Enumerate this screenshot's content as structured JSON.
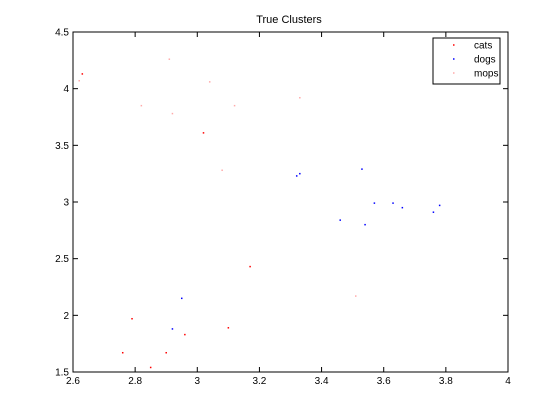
{
  "chart_data": {
    "type": "scatter",
    "title": "True Clusters",
    "xlabel": "",
    "ylabel": "",
    "xlim": [
      2.6,
      4.0
    ],
    "ylim": [
      1.5,
      4.5
    ],
    "xticks": [
      "2.6",
      "2.8",
      "3",
      "3.2",
      "3.4",
      "3.6",
      "3.8",
      "4"
    ],
    "yticks": [
      "1.5",
      "2",
      "2.5",
      "3",
      "3.5",
      "4",
      "4.5"
    ],
    "grid": false,
    "legend_position": "top-right",
    "series": [
      {
        "name": "cats",
        "color": "#ff0000",
        "points": [
          [
            2.63,
            4.13
          ],
          [
            2.76,
            1.67
          ],
          [
            2.79,
            1.97
          ],
          [
            2.85,
            1.54
          ],
          [
            2.9,
            1.67
          ],
          [
            2.96,
            1.83
          ],
          [
            3.02,
            3.61
          ],
          [
            3.1,
            1.89
          ],
          [
            3.17,
            2.43
          ]
        ]
      },
      {
        "name": "dogs",
        "color": "#0000ff",
        "points": [
          [
            2.92,
            1.88
          ],
          [
            2.95,
            2.15
          ],
          [
            3.32,
            3.23
          ],
          [
            3.33,
            3.25
          ],
          [
            3.46,
            2.84
          ],
          [
            3.53,
            3.29
          ],
          [
            3.54,
            2.8
          ],
          [
            3.57,
            2.99
          ],
          [
            3.63,
            2.99
          ],
          [
            3.66,
            2.95
          ],
          [
            3.76,
            2.91
          ],
          [
            3.78,
            2.97
          ]
        ]
      },
      {
        "name": "mops",
        "color": "#ffaaaa",
        "points": [
          [
            2.62,
            4.07
          ],
          [
            2.82,
            3.85
          ],
          [
            2.91,
            4.26
          ],
          [
            2.92,
            3.78
          ],
          [
            3.04,
            4.06
          ],
          [
            3.08,
            3.28
          ],
          [
            3.12,
            3.85
          ],
          [
            3.33,
            3.92
          ],
          [
            3.51,
            2.17
          ]
        ]
      }
    ]
  }
}
